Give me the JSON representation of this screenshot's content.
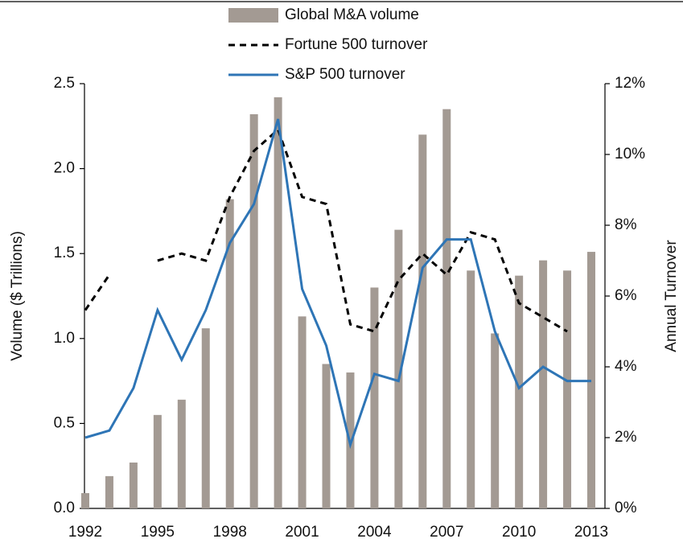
{
  "chart_data": {
    "type": "bar-line",
    "x": [
      1992,
      1993,
      1994,
      1995,
      1996,
      1997,
      1998,
      1999,
      2000,
      2001,
      2002,
      2003,
      2004,
      2005,
      2006,
      2007,
      2008,
      2009,
      2010,
      2011,
      2012,
      2013
    ],
    "xlim": [
      1992,
      2013
    ],
    "xticks": [
      1992,
      1995,
      1998,
      2001,
      2004,
      2007,
      2010,
      2013
    ],
    "ylabel": "Volume ($ Trillions)",
    "y2label": "Annual Turnover",
    "ylim": [
      0,
      2.5
    ],
    "yticks": [
      {
        "value": 0,
        "label": "0.0"
      },
      0.5,
      {
        "value": 1,
        "label": "1.0"
      },
      1.5,
      {
        "value": 2,
        "label": "2.0"
      },
      2.5
    ],
    "y2lim": [
      0,
      12
    ],
    "y2ticks": [
      {
        "value": 0,
        "label": "0%"
      },
      {
        "value": 2,
        "label": "2%"
      },
      {
        "value": 4,
        "label": "4%"
      },
      {
        "value": 6,
        "label": "6%"
      },
      {
        "value": 8,
        "label": "8%"
      },
      {
        "value": 10,
        "label": "10%"
      },
      {
        "value": 12,
        "label": "12%"
      }
    ],
    "series": [
      {
        "name": "Global M&A volume",
        "type": "bar",
        "color": "#a39a93",
        "values": [
          0.09,
          0.19,
          0.27,
          0.55,
          0.64,
          1.06,
          1.82,
          2.32,
          2.42,
          1.13,
          0.85,
          0.8,
          1.3,
          1.64,
          2.2,
          2.35,
          1.4,
          1.03,
          1.37,
          1.46,
          1.4,
          1.51
        ]
      },
      {
        "name": "Fortune 500 turnover",
        "type": "line",
        "dashed": true,
        "color": "#000000",
        "axis": "y2",
        "values": [
          5.6,
          6.6,
          null,
          7.0,
          7.2,
          7.0,
          8.8,
          10.1,
          10.7,
          8.8,
          8.6,
          5.2,
          5.0,
          6.45,
          7.2,
          6.6,
          7.8,
          7.6,
          5.8,
          5.4,
          5.0,
          null
        ]
      },
      {
        "name": "S&P 500 turnover",
        "type": "line",
        "dashed": false,
        "color": "#2e75b6",
        "axis": "y2",
        "values": [
          2.0,
          2.2,
          3.4,
          5.6,
          4.2,
          5.6,
          7.5,
          8.6,
          11.0,
          6.2,
          4.6,
          1.8,
          3.8,
          3.6,
          6.8,
          7.6,
          7.6,
          5.0,
          3.4,
          4.0,
          3.6,
          3.6
        ]
      }
    ]
  }
}
